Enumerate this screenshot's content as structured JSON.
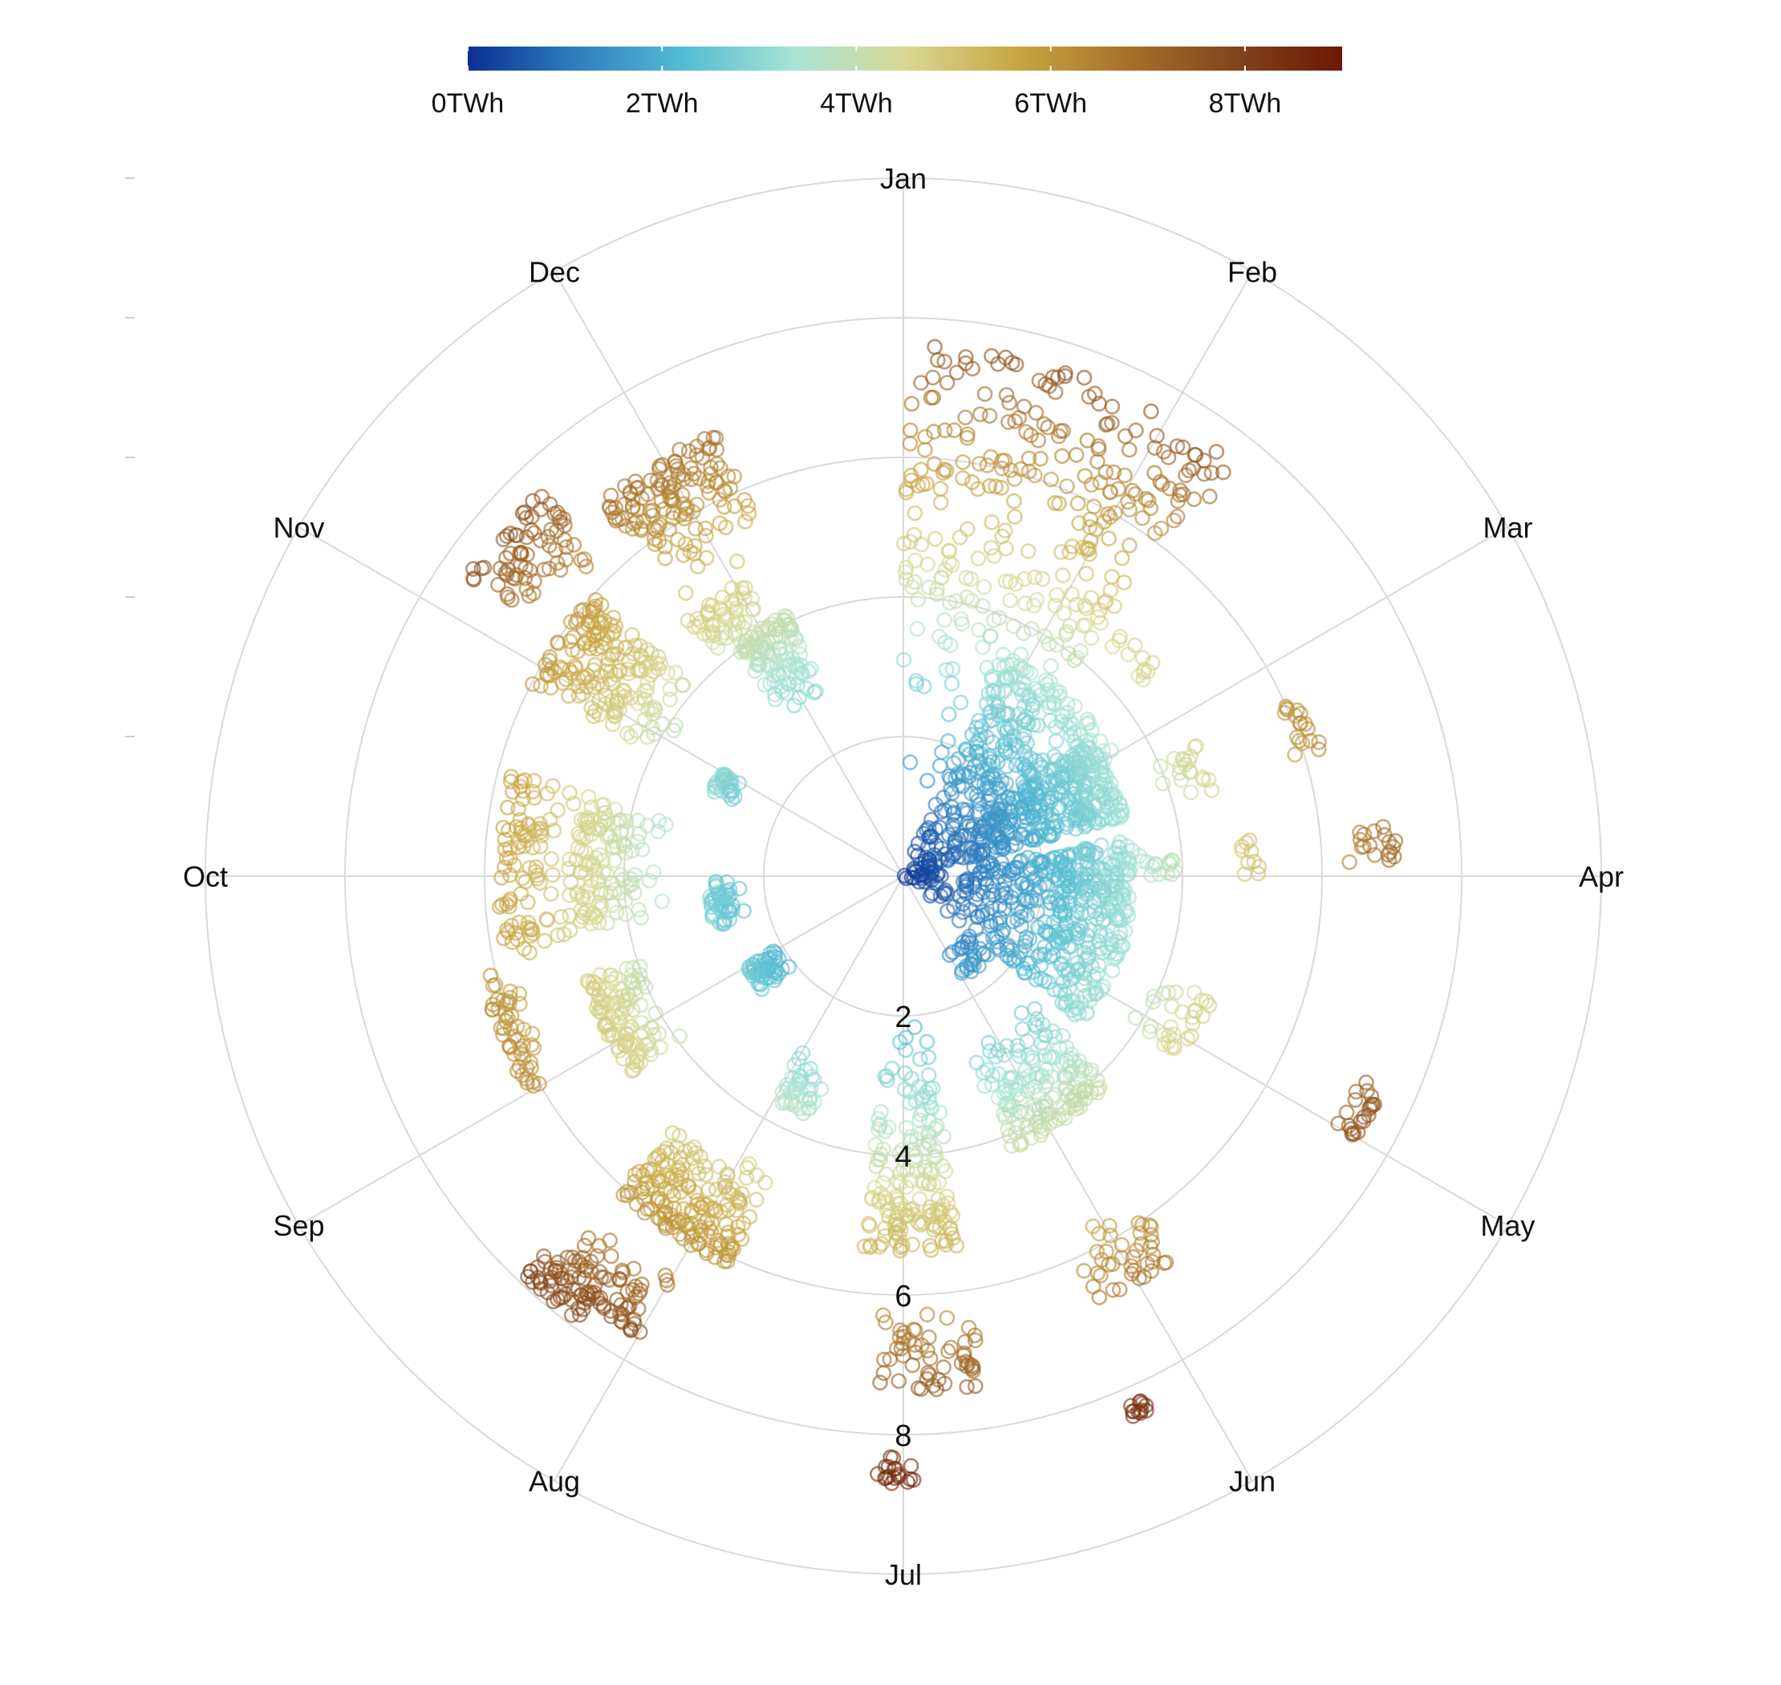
{
  "chart_data": {
    "type": "scatter",
    "coordinate_system": "polar",
    "title": "",
    "xlabel": "",
    "ylabel": "",
    "angular_axis": {
      "labels": [
        "Jan",
        "Feb",
        "Mar",
        "Apr",
        "May",
        "Jun",
        "Jul",
        "Aug",
        "Sep",
        "Oct",
        "Nov",
        "Dec"
      ]
    },
    "radial_axis": {
      "range": [
        0,
        10
      ],
      "ticks": [
        0,
        2,
        4,
        6,
        8,
        10
      ],
      "tick_labels": [
        "2",
        "4",
        "6",
        "8"
      ]
    },
    "colorbar": {
      "placement": "top",
      "range": [
        0,
        9
      ],
      "ticks": [
        0,
        2,
        4,
        6,
        8
      ],
      "tick_labels": [
        "0TWh",
        "2TWh",
        "4TWh",
        "6TWh",
        "8TWh"
      ],
      "colors": [
        "#0a2f93",
        "#2f7fc0",
        "#55bdd4",
        "#a9e4d4",
        "#d8d894",
        "#c9a743",
        "#a9732a",
        "#84451c",
        "#6b1904"
      ]
    },
    "grid": true,
    "marker": "open-circle",
    "clusters": [
      {
        "month": 1,
        "angle_range": [
          0.5,
          1.8
        ],
        "r_range": [
          1.0,
          7.6
        ],
        "count": 320
      },
      {
        "month": 2,
        "angle_range": [
          1.3,
          2.5
        ],
        "r_range": [
          0.1,
          3.5
        ],
        "count": 260
      },
      {
        "month": 2,
        "angle_range": [
          1.9,
          2.2
        ],
        "r_range": [
          4.3,
          4.7
        ],
        "count": 12
      },
      {
        "month": 3,
        "angle_range": [
          2.3,
          3.0
        ],
        "r_range": [
          0.0,
          3.3
        ],
        "count": 320
      },
      {
        "month": 3,
        "angle_range": [
          2.7,
          3.0
        ],
        "r_range": [
          3.9,
          4.6
        ],
        "count": 20
      },
      {
        "month": 3,
        "angle_range": [
          2.7,
          2.95
        ],
        "r_range": [
          5.8,
          6.3
        ],
        "count": 18
      },
      {
        "month": 4,
        "angle_range": [
          3.2,
          3.9
        ],
        "r_range": [
          0.0,
          3.3
        ],
        "count": 250
      },
      {
        "month": 4,
        "angle_range": [
          3.3,
          3.5
        ],
        "r_range": [
          3.2,
          3.9
        ],
        "count": 16
      },
      {
        "month": 4,
        "angle_range": [
          3.3,
          3.5
        ],
        "r_range": [
          4.7,
          5.1
        ],
        "count": 10
      },
      {
        "month": 4,
        "angle_range": [
          3.3,
          3.45
        ],
        "r_range": [
          6.2,
          7.2
        ],
        "count": 18
      },
      {
        "month": 5,
        "angle_range": [
          3.9,
          4.8
        ],
        "r_range": [
          0.0,
          3.3
        ],
        "count": 200
      },
      {
        "month": 5,
        "angle_range": [
          4.2,
          4.6
        ],
        "r_range": [
          3.7,
          4.8
        ],
        "count": 30
      },
      {
        "month": 5,
        "angle_range": [
          4.3,
          4.5
        ],
        "r_range": [
          6.9,
          7.5
        ],
        "count": 22
      },
      {
        "month": 6,
        "angle_range": [
          4.9,
          5.5
        ],
        "r_range": [
          1.1,
          1.7
        ],
        "count": 28
      },
      {
        "month": 6,
        "angle_range": [
          5.0,
          5.8
        ],
        "r_range": [
          2.5,
          4.2
        ],
        "count": 160
      },
      {
        "month": 6,
        "angle_range": [
          5.3,
          5.7
        ],
        "r_range": [
          5.6,
          6.7
        ],
        "count": 40
      },
      {
        "month": 6,
        "angle_range": [
          5.65,
          5.8
        ],
        "r_range": [
          8.2,
          8.5
        ],
        "count": 12
      },
      {
        "month": 7,
        "angle_range": [
          6.2,
          6.7
        ],
        "r_range": [
          1.9,
          5.4
        ],
        "count": 170
      },
      {
        "month": 7,
        "angle_range": [
          6.2,
          6.6
        ],
        "r_range": [
          6.2,
          7.4
        ],
        "count": 55
      },
      {
        "month": 7,
        "angle_range": [
          6.45,
          6.6
        ],
        "r_range": [
          8.3,
          8.7
        ],
        "count": 18
      },
      {
        "month": 8,
        "angle_range": [
          7.2,
          7.5
        ],
        "r_range": [
          2.8,
          3.7
        ],
        "count": 40
      },
      {
        "month": 8,
        "angle_range": [
          7.3,
          7.9
        ],
        "r_range": [
          4.6,
          6.1
        ],
        "count": 170
      },
      {
        "month": 8,
        "angle_range": [
          7.5,
          7.9
        ],
        "r_range": [
          6.6,
          7.6
        ],
        "count": 80
      },
      {
        "month": 8,
        "angle_range": [
          7.7,
          7.95
        ],
        "r_range": [
          7.4,
          7.9
        ],
        "count": 30
      },
      {
        "month": 9,
        "angle_range": [
          8.2,
          8.5
        ],
        "r_range": [
          2.0,
          2.6
        ],
        "count": 50
      },
      {
        "month": 9,
        "angle_range": [
          8.3,
          8.9
        ],
        "r_range": [
          3.9,
          4.8
        ],
        "count": 110
      },
      {
        "month": 9,
        "angle_range": [
          8.5,
          9.05
        ],
        "r_range": [
          5.7,
          6.2
        ],
        "count": 50
      },
      {
        "month": 10,
        "angle_range": [
          9.0,
          9.45
        ],
        "r_range": [
          2.3,
          2.8
        ],
        "count": 50
      },
      {
        "month": 10,
        "angle_range": [
          9.2,
          9.95
        ],
        "r_range": [
          3.4,
          4.7
        ],
        "count": 120
      },
      {
        "month": 10,
        "angle_range": [
          9.1,
          10.0
        ],
        "r_range": [
          4.6,
          5.8
        ],
        "count": 100
      },
      {
        "month": 11,
        "angle_range": [
          10.3,
          10.5
        ],
        "r_range": [
          2.6,
          3.0
        ],
        "count": 30
      },
      {
        "month": 11,
        "angle_range": [
          10.4,
          10.9
        ],
        "r_range": [
          3.8,
          6.0
        ],
        "count": 170
      },
      {
        "month": 11,
        "angle_range": [
          10.65,
          11.05
        ],
        "r_range": [
          6.3,
          7.6
        ],
        "count": 70
      },
      {
        "month": 12,
        "angle_range": [
          11.3,
          11.7
        ],
        "r_range": [
          2.8,
          4.1
        ],
        "count": 110
      },
      {
        "month": 12,
        "angle_range": [
          11.15,
          11.55
        ],
        "r_range": [
          4.0,
          4.8
        ],
        "count": 50
      },
      {
        "month": 12,
        "angle_range": [
          11.2,
          11.75
        ],
        "r_range": [
          5.0,
          6.9
        ],
        "count": 130
      }
    ]
  }
}
